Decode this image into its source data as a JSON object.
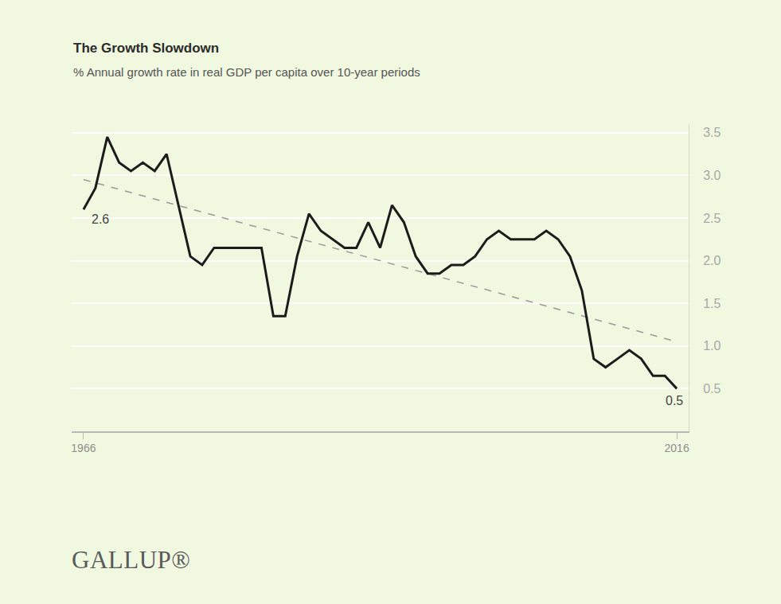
{
  "chart_data": {
    "type": "line",
    "title": "The Growth Slowdown",
    "subtitle": "% Annual growth rate in real GDP per capita over 10-year periods",
    "logo": "GALLUP®",
    "x": [
      1966,
      1967,
      1968,
      1969,
      1970,
      1971,
      1972,
      1973,
      1974,
      1975,
      1976,
      1977,
      1978,
      1979,
      1980,
      1981,
      1982,
      1983,
      1984,
      1985,
      1986,
      1987,
      1988,
      1989,
      1990,
      1991,
      1992,
      1993,
      1994,
      1995,
      1996,
      1997,
      1998,
      1999,
      2000,
      2001,
      2002,
      2003,
      2004,
      2005,
      2006,
      2007,
      2008,
      2009,
      2010,
      2011,
      2012,
      2013,
      2014,
      2015,
      2016
    ],
    "series": [
      {
        "color": "#1c1c1c",
        "line_style": "solid",
        "values": [
          2.6,
          2.85,
          3.45,
          3.15,
          3.05,
          3.15,
          3.05,
          3.25,
          2.65,
          2.05,
          1.95,
          2.15,
          2.15,
          2.15,
          2.15,
          2.15,
          1.35,
          1.35,
          2.05,
          2.55,
          2.35,
          2.25,
          2.15,
          2.15,
          2.45,
          2.15,
          2.65,
          2.45,
          2.05,
          1.85,
          1.85,
          1.95,
          1.95,
          2.05,
          2.25,
          2.35,
          2.25,
          2.25,
          2.25,
          2.35,
          2.25,
          2.05,
          1.65,
          0.85,
          0.75,
          0.85,
          0.95,
          0.85,
          0.65,
          0.65,
          0.5
        ]
      },
      {
        "color": "#9a9a9a",
        "line_style": "dashed",
        "x": [
          1966,
          2016
        ],
        "values": [
          2.95,
          1.05
        ]
      }
    ],
    "annotations": [
      {
        "x": 1966,
        "text": "2.6"
      },
      {
        "x": 2016,
        "text": "0.5"
      }
    ],
    "xlim": [
      1965,
      2017
    ],
    "xticks": [
      1966,
      2016
    ],
    "ylim": [
      0,
      3.6
    ],
    "yticks": [
      0.5,
      {
        "value": 1.0,
        "label": "1.0"
      },
      1.5,
      {
        "value": 2.0,
        "label": "2.0"
      },
      2.5,
      {
        "value": 3.0,
        "label": "3.0"
      },
      3.5
    ],
    "grid": true
  }
}
